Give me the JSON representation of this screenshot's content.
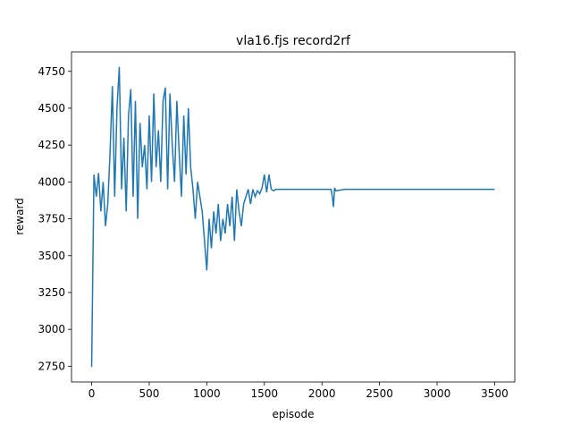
{
  "chart_data": {
    "type": "line",
    "title": "vla16.fjs record2rf",
    "x_label": "episode",
    "y_label": "reward",
    "x": [
      0,
      20,
      40,
      60,
      80,
      100,
      120,
      140,
      160,
      180,
      200,
      220,
      240,
      260,
      280,
      300,
      320,
      340,
      360,
      380,
      400,
      420,
      440,
      460,
      480,
      500,
      520,
      540,
      560,
      580,
      600,
      620,
      640,
      660,
      680,
      700,
      720,
      740,
      760,
      780,
      800,
      820,
      840,
      860,
      880,
      900,
      920,
      940,
      960,
      980,
      1000,
      1020,
      1040,
      1060,
      1080,
      1100,
      1120,
      1140,
      1160,
      1180,
      1200,
      1220,
      1240,
      1260,
      1280,
      1300,
      1320,
      1340,
      1360,
      1380,
      1400,
      1420,
      1440,
      1460,
      1480,
      1500,
      1520,
      1540,
      1560,
      1580,
      1600,
      1650,
      2080,
      2090,
      2100,
      2110,
      2120,
      2200,
      3500
    ],
    "series": [
      {
        "color": "#1f77b4",
        "values": [
          2745,
          4050,
          3900,
          4060,
          3800,
          4000,
          3700,
          3850,
          4200,
          4650,
          3900,
          4500,
          4780,
          3950,
          4300,
          3800,
          4450,
          4630,
          3900,
          4550,
          3750,
          4400,
          4100,
          4250,
          3950,
          4450,
          4000,
          4600,
          4100,
          4350,
          4000,
          4550,
          4640,
          3950,
          4600,
          4250,
          4000,
          4550,
          4200,
          3900,
          4450,
          4050,
          4500,
          4100,
          3950,
          3750,
          4000,
          3900,
          3800,
          3600,
          3400,
          3750,
          3550,
          3800,
          3650,
          3850,
          3600,
          3750,
          3650,
          3850,
          3700,
          3900,
          3600,
          3950,
          3800,
          3700,
          3850,
          3900,
          3950,
          3850,
          3950,
          3900,
          3940,
          3920,
          3960,
          4050,
          3930,
          4050,
          3950,
          3940,
          3950,
          3950,
          3950,
          3900,
          3830,
          3960,
          3940,
          3950,
          3950
        ]
      }
    ],
    "xlim": [
      -175,
      3675
    ],
    "ylim": [
      2643,
      4882
    ],
    "xticks": [
      0,
      500,
      1000,
      1500,
      2000,
      2500,
      3000,
      3500
    ],
    "yticks": [
      2750,
      3000,
      3250,
      3500,
      3750,
      4000,
      4250,
      4500,
      4750
    ]
  }
}
